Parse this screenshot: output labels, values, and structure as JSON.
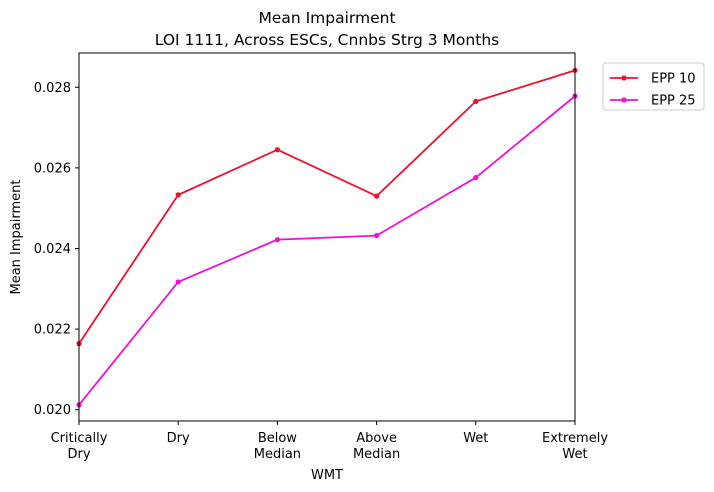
{
  "chart_data": {
    "type": "line",
    "title": "Mean Impairment",
    "subtitle": "LOI 1111, Across ESCs, Cnnbs Strg 3 Months",
    "xlabel": "WMT",
    "ylabel": "Mean Impairment",
    "categories": [
      [
        "Critically",
        "Dry"
      ],
      [
        "Dry"
      ],
      [
        "Below",
        "Median"
      ],
      [
        "Above",
        "Median"
      ],
      [
        "Wet"
      ],
      [
        "Extremely",
        "Wet"
      ]
    ],
    "ylim": [
      0.01972,
      0.02885
    ],
    "yticks": [
      "0.020",
      "0.022",
      "0.024",
      "0.026",
      "0.028"
    ],
    "grid": false,
    "legend_position": "outside-top-right",
    "series": [
      {
        "name": "EPP 10",
        "color": "#f0102a",
        "values": [
          0.02164,
          0.02533,
          0.02645,
          0.0253,
          0.02765,
          0.02842
        ]
      },
      {
        "name": "EPP 25",
        "color": "#f010d0",
        "values": [
          0.02012,
          0.02317,
          0.02422,
          0.02432,
          0.02576,
          0.02778
        ]
      }
    ]
  }
}
